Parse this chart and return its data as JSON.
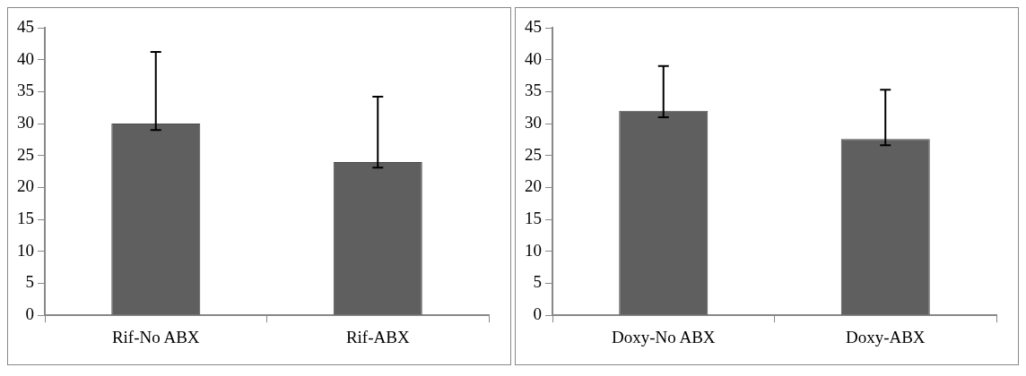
{
  "chart_data": [
    {
      "type": "bar",
      "categories": [
        "Rif-No ABX",
        "Rif-ABX"
      ],
      "values": [
        30,
        24
      ],
      "color": "#5f5f5f",
      "errors": [
        [
          29,
          41.2
        ],
        [
          23.1,
          34.2
        ]
      ],
      "ylim": [
        0,
        45
      ],
      "yticks": [
        0,
        5,
        10,
        15,
        20,
        25,
        30,
        35,
        40,
        45
      ],
      "grid": false,
      "legend": false
    },
    {
      "type": "bar",
      "categories": [
        "Doxy-No ABX",
        "Doxy-ABX"
      ],
      "values": [
        32,
        27.6
      ],
      "color": "#5f5f5f",
      "errors": [
        [
          31,
          39
        ],
        [
          26.6,
          35.3
        ]
      ],
      "ylim": [
        0,
        45
      ],
      "yticks": [
        0,
        5,
        10,
        15,
        20,
        25,
        30,
        35,
        40,
        45
      ],
      "grid": false,
      "legend": false
    }
  ]
}
